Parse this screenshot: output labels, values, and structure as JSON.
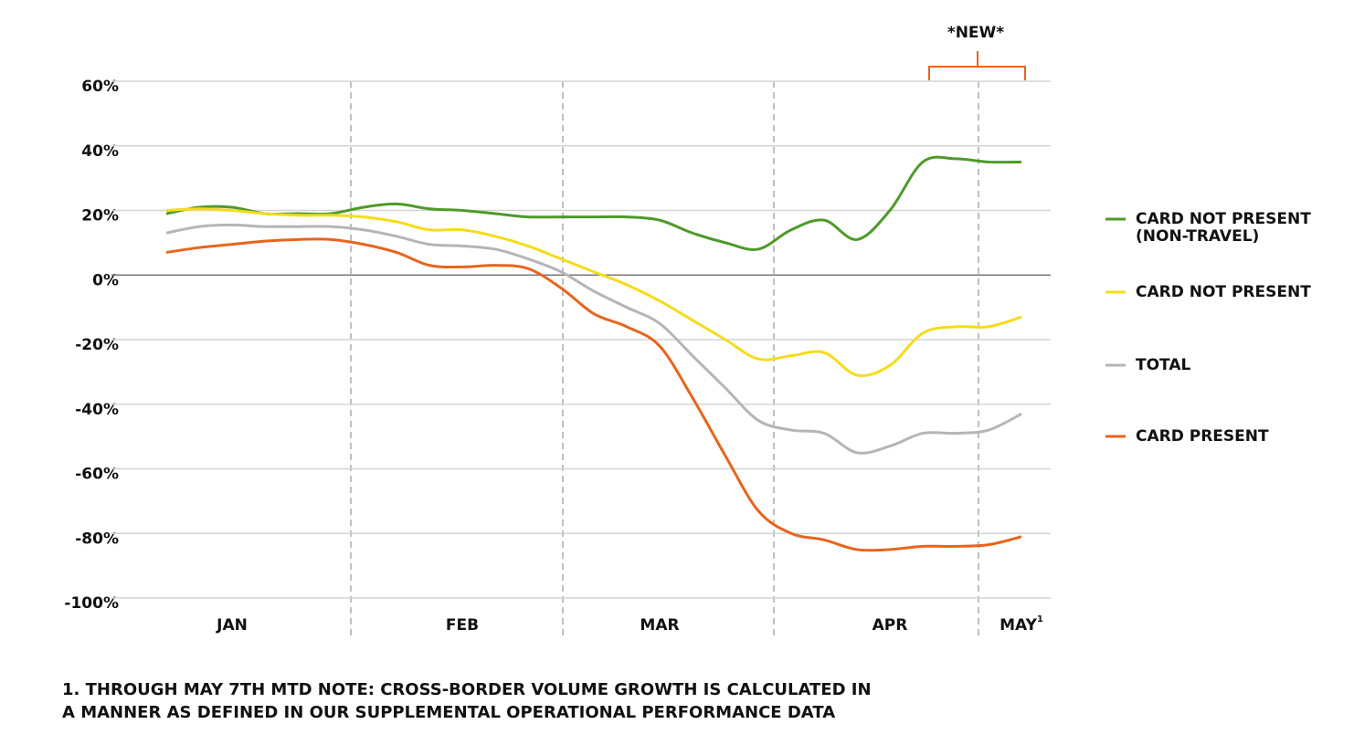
{
  "chart_data": {
    "type": "line",
    "categories": [
      null,
      null,
      "JAN",
      null,
      null,
      null,
      null,
      null,
      null,
      "FEB",
      null,
      null,
      null,
      null,
      null,
      "MAR",
      null,
      null,
      null,
      null,
      null,
      null,
      "APR",
      null,
      null,
      null,
      "MAY"
    ],
    "x_label_note": "1",
    "series": [
      {
        "name": "CARD NOT PRESENT (NON-TRAVEL)",
        "color": "#4e9a2a",
        "values": [
          19,
          21,
          21,
          19,
          19,
          19,
          21,
          22,
          20.5,
          20,
          19,
          18,
          18,
          18,
          18,
          17,
          13,
          10,
          8,
          14,
          17,
          11,
          20,
          35,
          36,
          35,
          35
        ]
      },
      {
        "name": "CARD NOT PRESENT",
        "color": "#f5dc1a",
        "values": [
          20,
          20.5,
          20,
          19,
          18.5,
          18.5,
          18,
          16.5,
          14,
          14,
          12,
          9,
          5,
          1,
          -3,
          -8,
          -14,
          -20,
          -26,
          -25,
          -24,
          -31,
          -28,
          -18,
          -16,
          -16,
          -13
        ]
      },
      {
        "name": "TOTAL",
        "color": "#b5b5b5",
        "values": [
          13,
          15,
          15.5,
          15,
          15,
          15,
          14,
          12,
          9.5,
          9,
          8,
          5,
          1,
          -5,
          -10,
          -15,
          -25,
          -35,
          -45,
          -48,
          -49,
          -55,
          -53,
          -49,
          -49,
          -48,
          -43
        ]
      },
      {
        "name": "CARD PRESENT",
        "color": "#e8641e",
        "values": [
          7,
          8.5,
          9.5,
          10.5,
          11,
          11,
          9.5,
          7,
          3,
          2.5,
          3,
          2,
          -4,
          -12,
          -16,
          -22,
          -38,
          -56,
          -73,
          -80,
          -82,
          -85,
          -85,
          -84,
          -84,
          -83.5,
          -81
        ]
      }
    ],
    "ylim": [
      -100,
      60
    ],
    "yticks": [
      {
        "value": -100,
        "label": "-100%"
      },
      {
        "value": -80,
        "label": "-80%"
      },
      {
        "value": -60,
        "label": "-60%"
      },
      {
        "value": -40,
        "label": "-40%"
      },
      {
        "value": -20,
        "label": "-20%"
      },
      {
        "value": 0,
        "label": "0%"
      },
      {
        "value": 20,
        "label": "20%"
      },
      {
        "value": 40,
        "label": "40%"
      },
      {
        "value": 60,
        "label": "60%"
      }
    ],
    "grid": true,
    "legend": "right",
    "annotation": "*NEW*",
    "footnote": [
      "1. THROUGH MAY 7TH MTD NOTE: CROSS-BORDER VOLUME GROWTH IS CALCULATED IN",
      "A MANNER AS DEFINED IN OUR SUPPLEMENTAL OPERATIONAL PERFORMANCE DATA"
    ]
  }
}
